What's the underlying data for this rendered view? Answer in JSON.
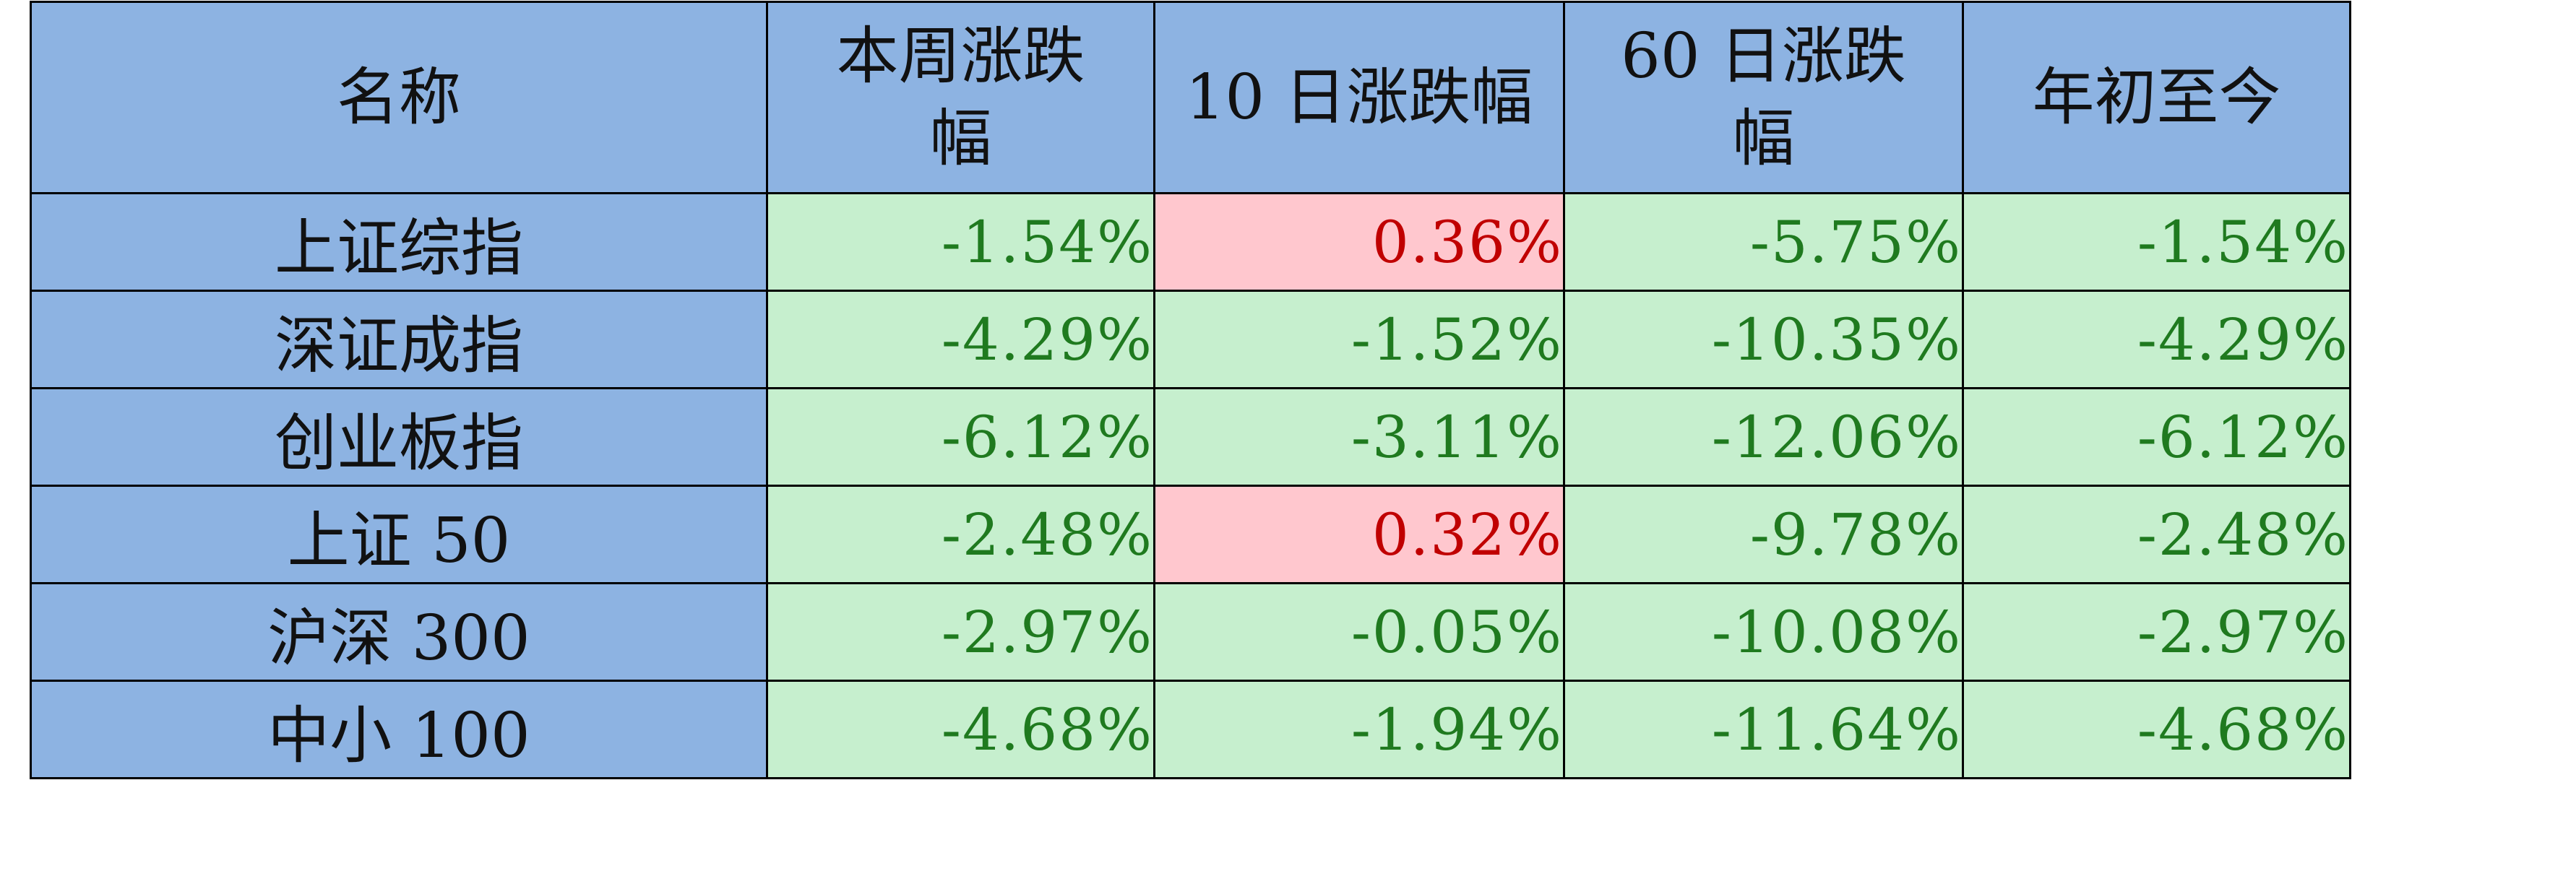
{
  "table": {
    "headers": [
      "名称",
      "本周涨跌幅",
      "10 日涨跌幅",
      "60 日涨跌幅",
      "年初至今"
    ],
    "header_lines": [
      [
        "名称"
      ],
      [
        "本周涨跌",
        "幅"
      ],
      [
        "10 日涨跌幅"
      ],
      [
        "60 日涨跌",
        "幅"
      ],
      [
        "年初至今"
      ]
    ],
    "rows": [
      {
        "name": "上证综指",
        "week": "-1.54%",
        "d10": "0.36%",
        "d60": "-5.75%",
        "ytd": "-1.54%"
      },
      {
        "name": "深证成指",
        "week": "-4.29%",
        "d10": "-1.52%",
        "d60": "-10.35%",
        "ytd": "-4.29%"
      },
      {
        "name": "创业板指",
        "week": "-6.12%",
        "d10": "-3.11%",
        "d60": "-12.06%",
        "ytd": "-6.12%"
      },
      {
        "name": "上证 50",
        "week": "-2.48%",
        "d10": "0.32%",
        "d60": "-9.78%",
        "ytd": "-2.48%"
      },
      {
        "name": "沪深 300",
        "week": "-2.97%",
        "d10": "-0.05%",
        "d60": "-10.08%",
        "ytd": "-2.97%"
      },
      {
        "name": "中小 100",
        "week": "-4.68%",
        "d10": "-1.94%",
        "d60": "-11.64%",
        "ytd": "-4.68%"
      }
    ]
  },
  "colors": {
    "header_bg": "#8db3e2",
    "negative_bg": "#c6efce",
    "negative_text": "#1f7a1f",
    "positive_bg": "#ffc7ce",
    "positive_text": "#c00000"
  }
}
